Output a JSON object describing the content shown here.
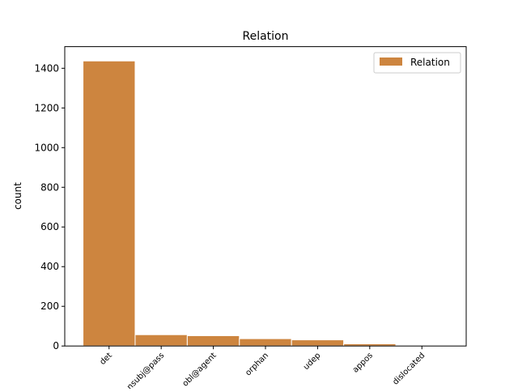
{
  "chart_data": {
    "type": "bar",
    "title": "Relation",
    "xlabel": "",
    "ylabel": "count",
    "categories": [
      "det",
      "nsubj@pass",
      "obl@agent",
      "orphan",
      "udep",
      "appos",
      "dislocated"
    ],
    "series": [
      {
        "name": "Relation",
        "values": [
          1437,
          57,
          52,
          37,
          31,
          11,
          1
        ]
      }
    ],
    "ylim": [
      0,
      1509
    ],
    "yticks": [
      0,
      200,
      400,
      600,
      800,
      1000,
      1200,
      1400
    ],
    "grid": false,
    "legend": "top-right",
    "bar_color": "#cd853f",
    "bar_edge_color": "#ffffff",
    "xtick_rotation": 45
  }
}
